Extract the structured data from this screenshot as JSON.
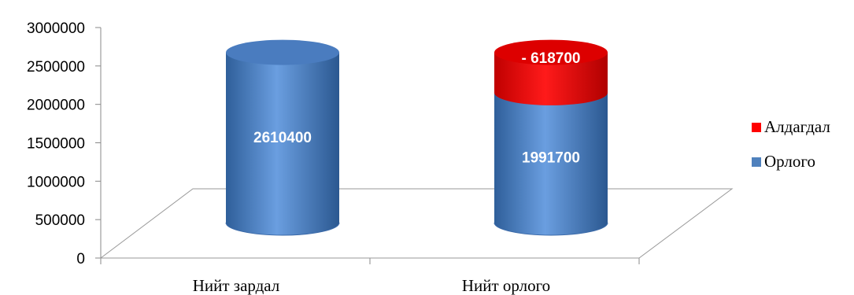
{
  "chart_data": {
    "type": "bar",
    "stacked": true,
    "style": "3d-cylinder",
    "categories": [
      "Нийт зардал",
      "Нийт орлого"
    ],
    "series": [
      {
        "name": "Орлого",
        "values": [
          2610400,
          1991700
        ],
        "labels": [
          "2610400",
          "1991700"
        ],
        "color": "#4F81BD"
      },
      {
        "name": "Алдагдал",
        "values": [
          null,
          618700
        ],
        "labels": [
          "",
          "- 618700"
        ],
        "color": "#FF0000"
      }
    ],
    "yticks": [
      "0",
      "500000",
      "1000000",
      "1500000",
      "2000000",
      "2500000",
      "3000000"
    ],
    "ylim": [
      0,
      3000000
    ],
    "legend": {
      "position": "right",
      "entries": [
        "Алдагдал",
        "Орлого"
      ]
    },
    "grid": false
  }
}
